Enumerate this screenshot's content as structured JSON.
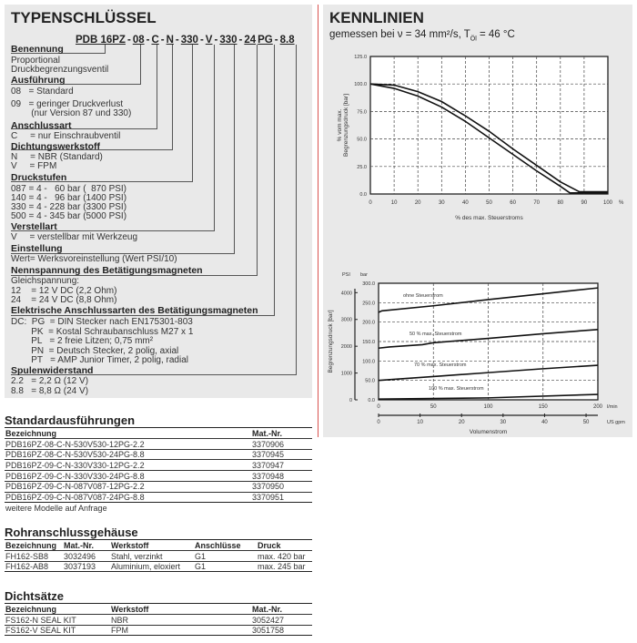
{
  "typenschluessel": {
    "title": "TYPENSCHLÜSSEL",
    "code_parts": [
      "PDB 16PZ",
      "-",
      "08",
      "-",
      "C",
      "-",
      "N",
      "-",
      "330",
      "-",
      "V",
      "-",
      "330",
      "-",
      "24",
      "PG",
      "-",
      "8.8"
    ],
    "sections": [
      {
        "heading": "Benennung",
        "lines": [
          "Proportional",
          "Druckbegrenzungsventil"
        ]
      },
      {
        "heading": "Ausführung",
        "lines": [
          "08   = Standard",
          "09   = geringer Druckverlust",
          "        (nur Version 87 und 330)"
        ]
      },
      {
        "heading": "Anschlussart",
        "lines": [
          "C     = nur Einschraubventil"
        ]
      },
      {
        "heading": "Dichtungswerkstoff",
        "lines": [
          "N     = NBR (Standard)",
          "V     = FPM"
        ]
      },
      {
        "heading": "Druckstufen",
        "lines": [
          "087 = 4 -   60 bar (  870 PSI)",
          "140 = 4 -   96 bar (1400 PSI)",
          "330 = 4 - 228 bar (3300 PSI)",
          "500 = 4 - 345 bar (5000 PSI)"
        ]
      },
      {
        "heading": "Verstellart",
        "lines": [
          "V     = verstellbar mit Werkzeug"
        ]
      },
      {
        "heading": "Einstellung",
        "lines": [
          "Wert= Werksvoreinstellung (Wert PSI/10)"
        ]
      },
      {
        "heading": "Nennspannung des Betätigungsmagneten",
        "lines": [
          "Gleichspannung:",
          "12    = 12 V DC (2,2 Ohm)",
          "24    = 24 V DC (8,8 Ohm)"
        ]
      },
      {
        "heading": "Elektrische Anschlussarten des Betätigungsmagneten",
        "lines": [
          "DC:  PG  = DIN Stecker nach EN175301-803",
          "        PK  = Kostal Schraubanschluss M27 x 1",
          "        PL   = 2 freie Litzen; 0,75 mm²",
          "        PN  = Deutsch Stecker, 2 polig, axial",
          "        PT   = AMP Junior Timer, 2 polig, radial"
        ]
      },
      {
        "heading": "Spulenwiderstand",
        "lines": [
          "2.2   = 2,2 Ω (12 V)",
          "8.8   = 8,8 Ω (24 V)"
        ]
      }
    ]
  },
  "kennlinien": {
    "title": "KENNLINIEN",
    "subtitle": "gemessen bei ν = 34 mm²/s, T",
    "subtitle_sub": "Öl",
    "subtitle_end": " = 46 °C"
  },
  "chart_data": [
    {
      "type": "line",
      "xlabel": "% des max. Steuerstroms",
      "ylabel_line1": "% vom max.",
      "ylabel_line2": "Begrenzungsdruck [bar]",
      "x_unit": "%",
      "xlim": [
        0,
        100
      ],
      "ylim": [
        0,
        125
      ],
      "xticks": [
        "0",
        "10",
        "20",
        "30",
        "40",
        "50",
        "60",
        "70",
        "80",
        "90",
        "100"
      ],
      "yticks": [
        "0.0",
        "25.0",
        "50.0",
        "75.0",
        "100.0",
        "125.0"
      ],
      "grid": true,
      "series": [
        {
          "x": [
            0,
            10,
            20,
            30,
            40,
            50,
            60,
            70,
            80,
            88,
            100
          ],
          "y": [
            100,
            99,
            93,
            84,
            71,
            57,
            41,
            26,
            11,
            2,
            2
          ]
        },
        {
          "x": [
            0,
            10,
            20,
            30,
            40,
            50,
            60,
            70,
            80,
            84,
            100
          ],
          "y": [
            100,
            96,
            89,
            79,
            66,
            51,
            36,
            21,
            7,
            1,
            1
          ]
        }
      ]
    },
    {
      "type": "line",
      "xlabel": "Volumenstrom",
      "ylabel": "Begrenzungsdruck [bar]",
      "y_unit": "bar",
      "y2_unit": "PSI",
      "x_unit": "l/min",
      "x2_unit": "US gpm",
      "xlim": [
        0,
        200
      ],
      "ylim": [
        0,
        300
      ],
      "xticks": [
        "0",
        "50",
        "100",
        "150",
        "200"
      ],
      "yticks": [
        "0.0",
        "50.0",
        "100.0",
        "150.0",
        "200.0",
        "250.0",
        "300.0"
      ],
      "y2ticks": [
        "0",
        "1000",
        "2000",
        "3000",
        "4000"
      ],
      "x2ticks": [
        "0",
        "10",
        "20",
        "30",
        "40",
        "50"
      ],
      "grid": true,
      "series": [
        {
          "name": "ohne Steuerstrom",
          "x": [
            0,
            3,
            50,
            100,
            150,
            200
          ],
          "y": [
            225,
            229,
            242,
            258,
            273,
            288
          ]
        },
        {
          "name": "50 % max. Steuerstrom",
          "x": [
            0,
            10,
            40,
            50,
            100,
            150,
            200
          ],
          "y": [
            133,
            136,
            142,
            147,
            158,
            170,
            181
          ]
        },
        {
          "name": "70 % max. Steuerstrom",
          "x": [
            0,
            50,
            100,
            150,
            200
          ],
          "y": [
            50,
            60,
            70,
            80,
            89
          ]
        },
        {
          "name": "100 % max. Steuerstrom",
          "x": [
            0,
            100,
            200
          ],
          "y": [
            2,
            5,
            14
          ]
        }
      ]
    }
  ],
  "standard": {
    "title": "Standardausführungen",
    "headers": [
      "Bezeichnung",
      "Mat.-Nr."
    ],
    "rows": [
      [
        "PDB16PZ-08-C-N-530V530-12PG-2.2",
        "3370906"
      ],
      [
        "PDB16PZ-08-C-N-530V530-24PG-8.8",
        "3370945"
      ],
      [
        "PDB16PZ-09-C-N-330V330-12PG-2.2",
        "3370947"
      ],
      [
        "PDB16PZ-09-C-N-330V330-24PG-8.8",
        "3370948"
      ],
      [
        "PDB16PZ-09-C-N-087V087-12PG-2.2",
        "3370950"
      ],
      [
        "PDB16PZ-09-C-N-087V087-24PG-8.8",
        "3370951"
      ]
    ],
    "note": "weitere Modelle auf Anfrage"
  },
  "rohr": {
    "title": "Rohranschlussgehäuse",
    "headers": [
      "Bezeichnung",
      "Mat.-Nr.",
      "Werkstoff",
      "Anschlüsse",
      "Druck"
    ],
    "rows": [
      [
        "FH162-SB8",
        "3032496",
        "Stahl, verzinkt",
        "G1",
        "max. 420 bar"
      ],
      [
        "FH162-AB8",
        "3037193",
        "Aluminium, eloxiert",
        "G1",
        "max. 245 bar"
      ]
    ]
  },
  "dicht": {
    "title": "Dichtsätze",
    "headers": [
      "Bezeichnung",
      "Werkstoff",
      "Mat.-Nr."
    ],
    "rows": [
      [
        "FS162-N SEAL KIT",
        "NBR",
        "3052427"
      ],
      [
        "FS162-V SEAL KIT",
        "FPM",
        "3051758"
      ]
    ]
  },
  "colors": {
    "panel": "#e9e9e9",
    "divider": "#d9534f"
  }
}
